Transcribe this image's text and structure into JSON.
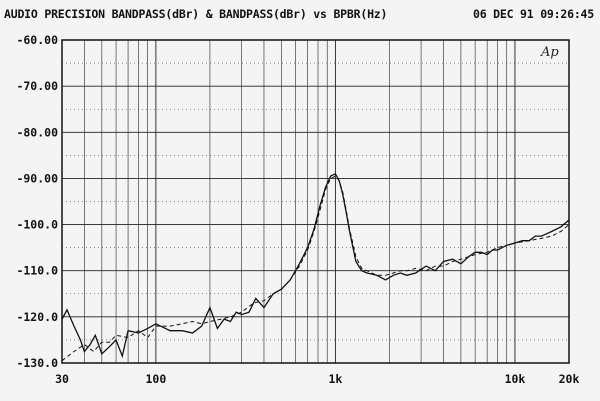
{
  "header": {
    "title": "AUDIO PRECISION BANDPASS(dBr) & BANDPASS(dBr) vs BPBR(Hz)",
    "timestamp": "06 DEC 91 09:26:45"
  },
  "logo_text": "Ap",
  "chart_data": {
    "type": "line",
    "title": "AUDIO PRECISION BANDPASS(dBr) & BANDPASS(dBr) vs BPBR(Hz)",
    "xlabel": "",
    "ylabel": "",
    "x_scale": "log",
    "xlim": [
      30,
      20000
    ],
    "ylim": [
      -130,
      -60
    ],
    "grid": true,
    "legend": "none",
    "x_tick_labels": [
      {
        "value": 30,
        "label": "30"
      },
      {
        "value": 100,
        "label": "100"
      },
      {
        "value": 1000,
        "label": "1k"
      },
      {
        "value": 10000,
        "label": "10k"
      },
      {
        "value": 20000,
        "label": "20k"
      }
    ],
    "y_tick_labels": [
      {
        "value": -60,
        "label": "-60.00"
      },
      {
        "value": -70,
        "label": "-70.00"
      },
      {
        "value": -80,
        "label": "-80.00"
      },
      {
        "value": -90,
        "label": "-90.00"
      },
      {
        "value": -100,
        "label": "-100.0"
      },
      {
        "value": -110,
        "label": "-110.0"
      },
      {
        "value": -120,
        "label": "-120.0"
      },
      {
        "value": -130,
        "label": "-130.0"
      }
    ],
    "series": [
      {
        "style": "solid",
        "x": [
          30,
          32,
          35,
          38,
          40,
          43,
          46,
          50,
          55,
          60,
          65,
          70,
          80,
          90,
          100,
          120,
          140,
          160,
          180,
          200,
          220,
          240,
          260,
          280,
          300,
          330,
          360,
          400,
          450,
          500,
          560,
          630,
          700,
          760,
          820,
          880,
          940,
          1000,
          1050,
          1100,
          1150,
          1200,
          1300,
          1400,
          1500,
          1700,
          1900,
          2100,
          2300,
          2500,
          2800,
          3200,
          3600,
          4000,
          4500,
          5000,
          5500,
          6000,
          6500,
          7000,
          7500,
          8000,
          9000,
          10000,
          11000,
          12000,
          13000,
          14000,
          15000,
          16000,
          18000,
          20000
        ],
        "y": [
          -120.5,
          -118.5,
          -122,
          -125,
          -127.5,
          -126,
          -124,
          -128,
          -126.5,
          -125,
          -128.5,
          -123,
          -123.5,
          -122.5,
          -121.5,
          -123,
          -123,
          -123.5,
          -122,
          -118,
          -122.5,
          -120.5,
          -121,
          -119,
          -119.5,
          -119,
          -116,
          -118,
          -115,
          -114,
          -112,
          -108.5,
          -105,
          -101,
          -96,
          -92,
          -89.5,
          -89,
          -90.5,
          -93.5,
          -97.5,
          -101.5,
          -108,
          -110,
          -110.5,
          -111,
          -112,
          -111,
          -110.5,
          -111,
          -110.5,
          -109,
          -110,
          -108,
          -107.5,
          -108.5,
          -107,
          -106,
          -106,
          -106.5,
          -105.5,
          -105.5,
          -104.5,
          -104,
          -103.5,
          -103.5,
          -102.5,
          -102.5,
          -102,
          -101.5,
          -100.5,
          -99
        ]
      },
      {
        "style": "dashed",
        "x": [
          30,
          35,
          40,
          45,
          50,
          55,
          60,
          70,
          80,
          90,
          100,
          120,
          140,
          160,
          180,
          200,
          230,
          260,
          300,
          350,
          400,
          450,
          500,
          560,
          630,
          700,
          760,
          820,
          880,
          940,
          1000,
          1050,
          1100,
          1150,
          1200,
          1300,
          1400,
          1500,
          1700,
          1900,
          2100,
          2300,
          2500,
          2800,
          3200,
          3600,
          4000,
          4500,
          5000,
          6000,
          7000,
          8000,
          9000,
          10000,
          12000,
          14000,
          16000,
          18000,
          20000
        ],
        "y": [
          -129.5,
          -127.5,
          -126,
          -127.5,
          -125.5,
          -125.5,
          -124,
          -124.5,
          -123,
          -124.5,
          -122,
          -122,
          -121.5,
          -121,
          -121.5,
          -121,
          -120.5,
          -120,
          -119,
          -117,
          -116.5,
          -115,
          -114,
          -112,
          -109,
          -105.5,
          -101.5,
          -97,
          -92.5,
          -90,
          -89.5,
          -90.5,
          -93,
          -97,
          -101,
          -107,
          -109.5,
          -110,
          -111,
          -111,
          -110.5,
          -110,
          -110,
          -109.5,
          -110,
          -109,
          -109,
          -108,
          -107.5,
          -106.5,
          -106,
          -105,
          -104.5,
          -104,
          -103.5,
          -103,
          -102.5,
          -101.5,
          -100
        ]
      }
    ]
  }
}
